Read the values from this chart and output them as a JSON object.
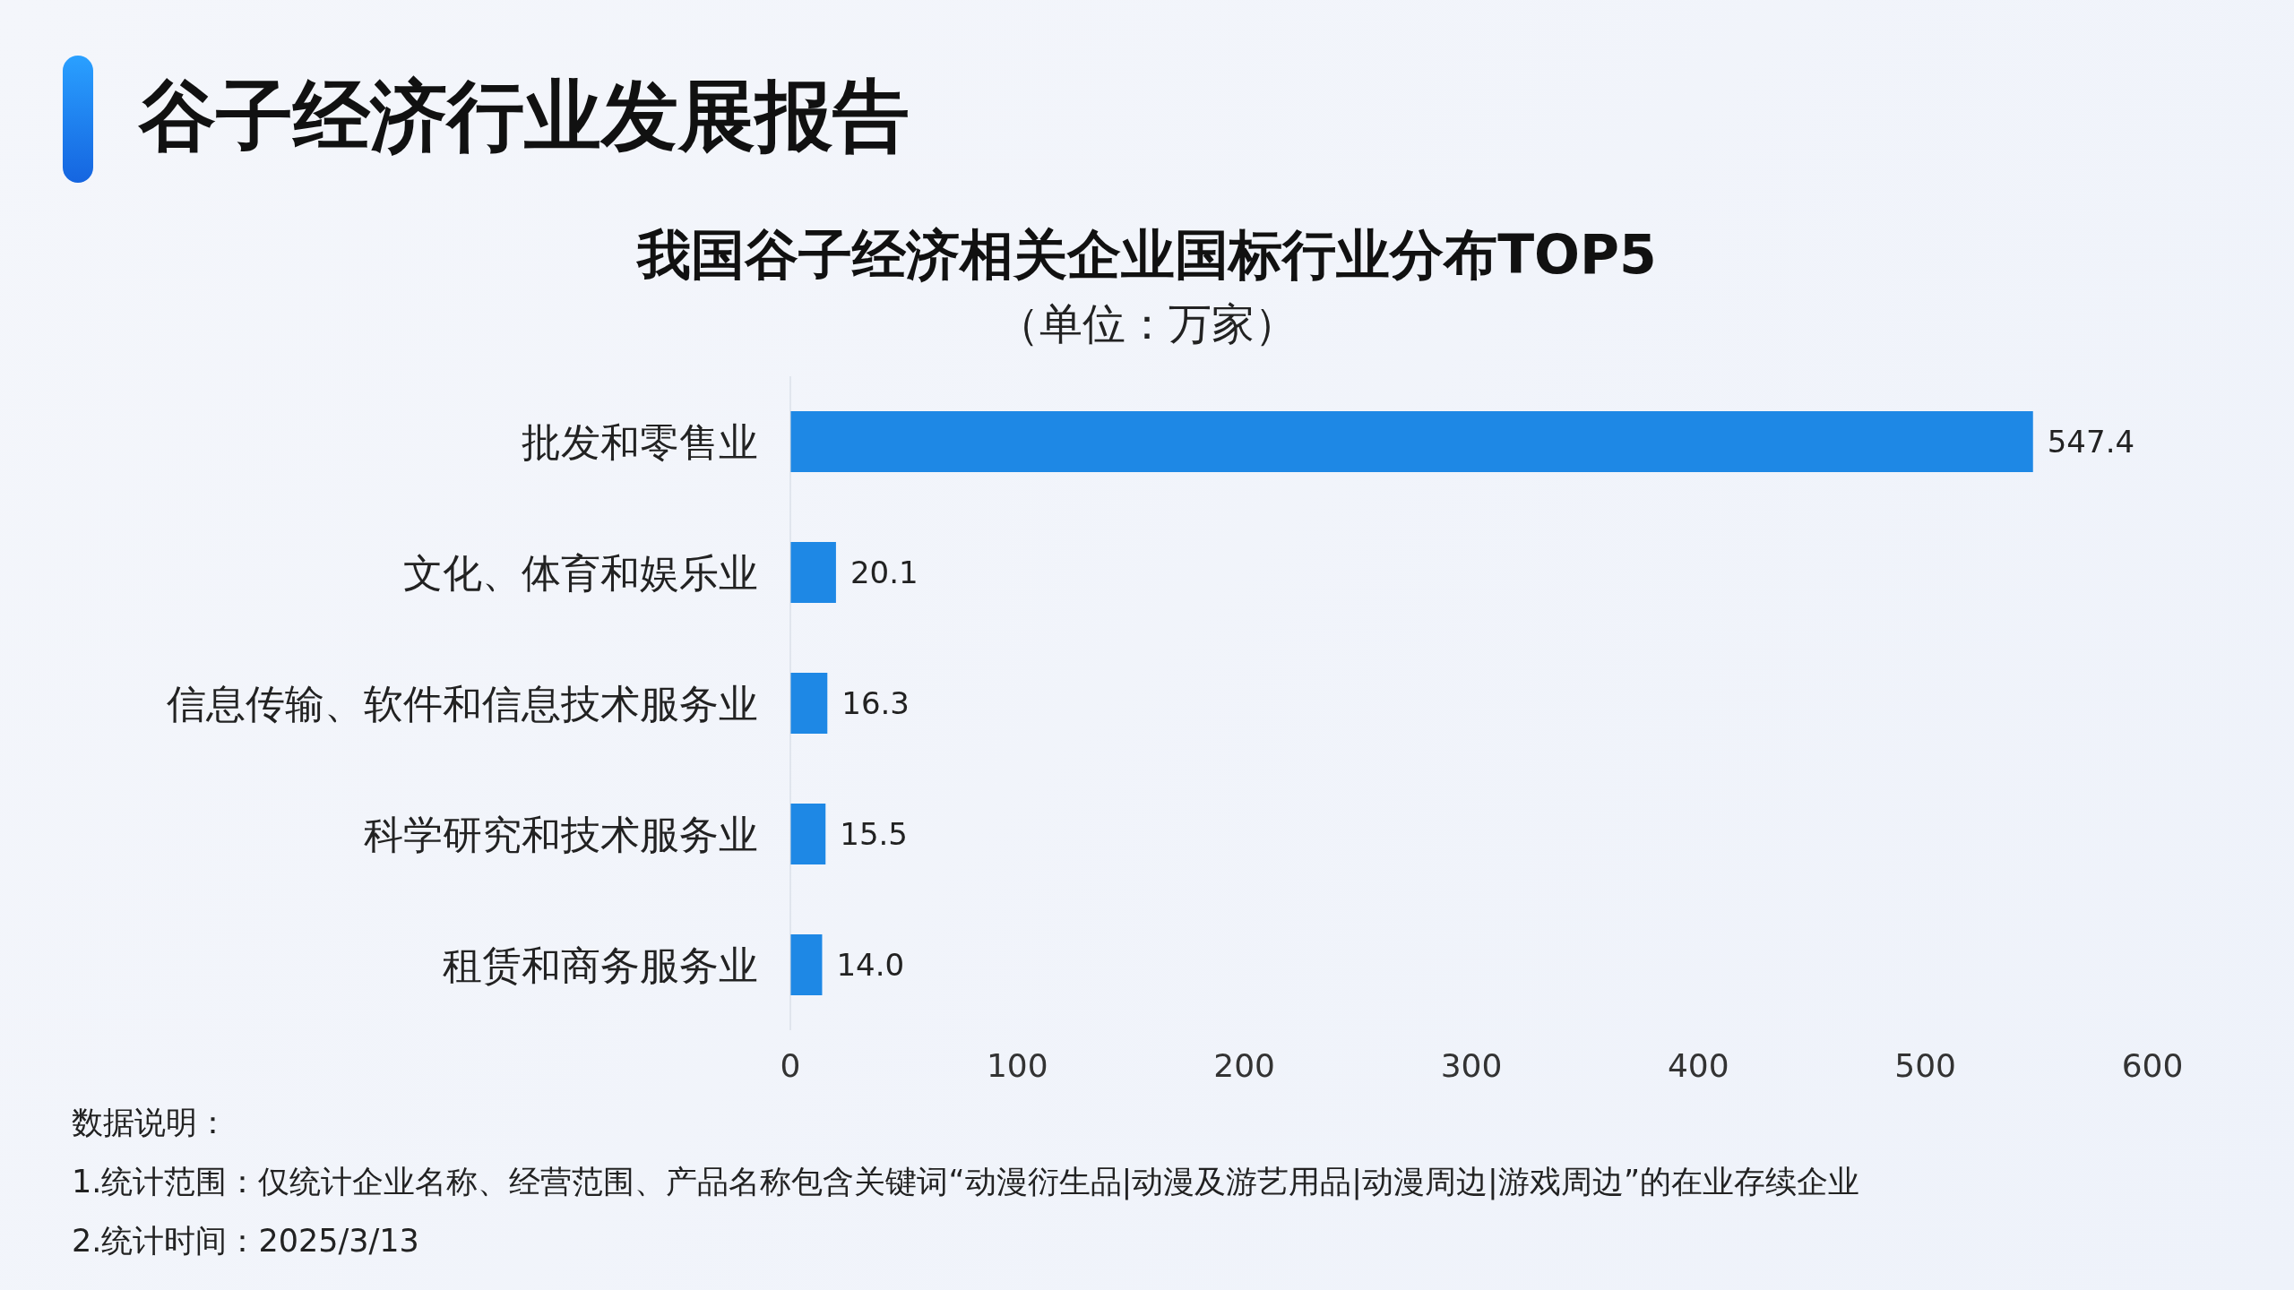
{
  "chart_data": {
    "type": "bar",
    "orientation": "horizontal",
    "title": "我国谷子经济相关企业国标行业分布TOP5",
    "subtitle": "（单位：万家）",
    "categories": [
      "批发和零售业",
      "文化、体育和娱乐业",
      "信息传输、软件和信息技术服务业",
      "科学研究和技术服务业",
      "租赁和商务服务业"
    ],
    "values": [
      547.4,
      20.1,
      16.3,
      15.5,
      14.0
    ],
    "value_labels": [
      "547.4",
      "20.1",
      "16.3",
      "15.5",
      "14.0"
    ],
    "color": "#1e88e5",
    "xlim": [
      0,
      600
    ],
    "xticks": [
      0,
      100,
      200,
      300,
      400,
      500,
      600
    ],
    "grid": false,
    "annotations": [
      "谷子经济行业发展报告",
      "数据说明：",
      "1.统计范围：仅统计企业名称、经营范围、产品名称包含关键词“动漫衍生品|动漫及游艺用品|动漫周边|游戏周边”的在业存续企业",
      "2.统计时间：2025/3/13"
    ]
  }
}
